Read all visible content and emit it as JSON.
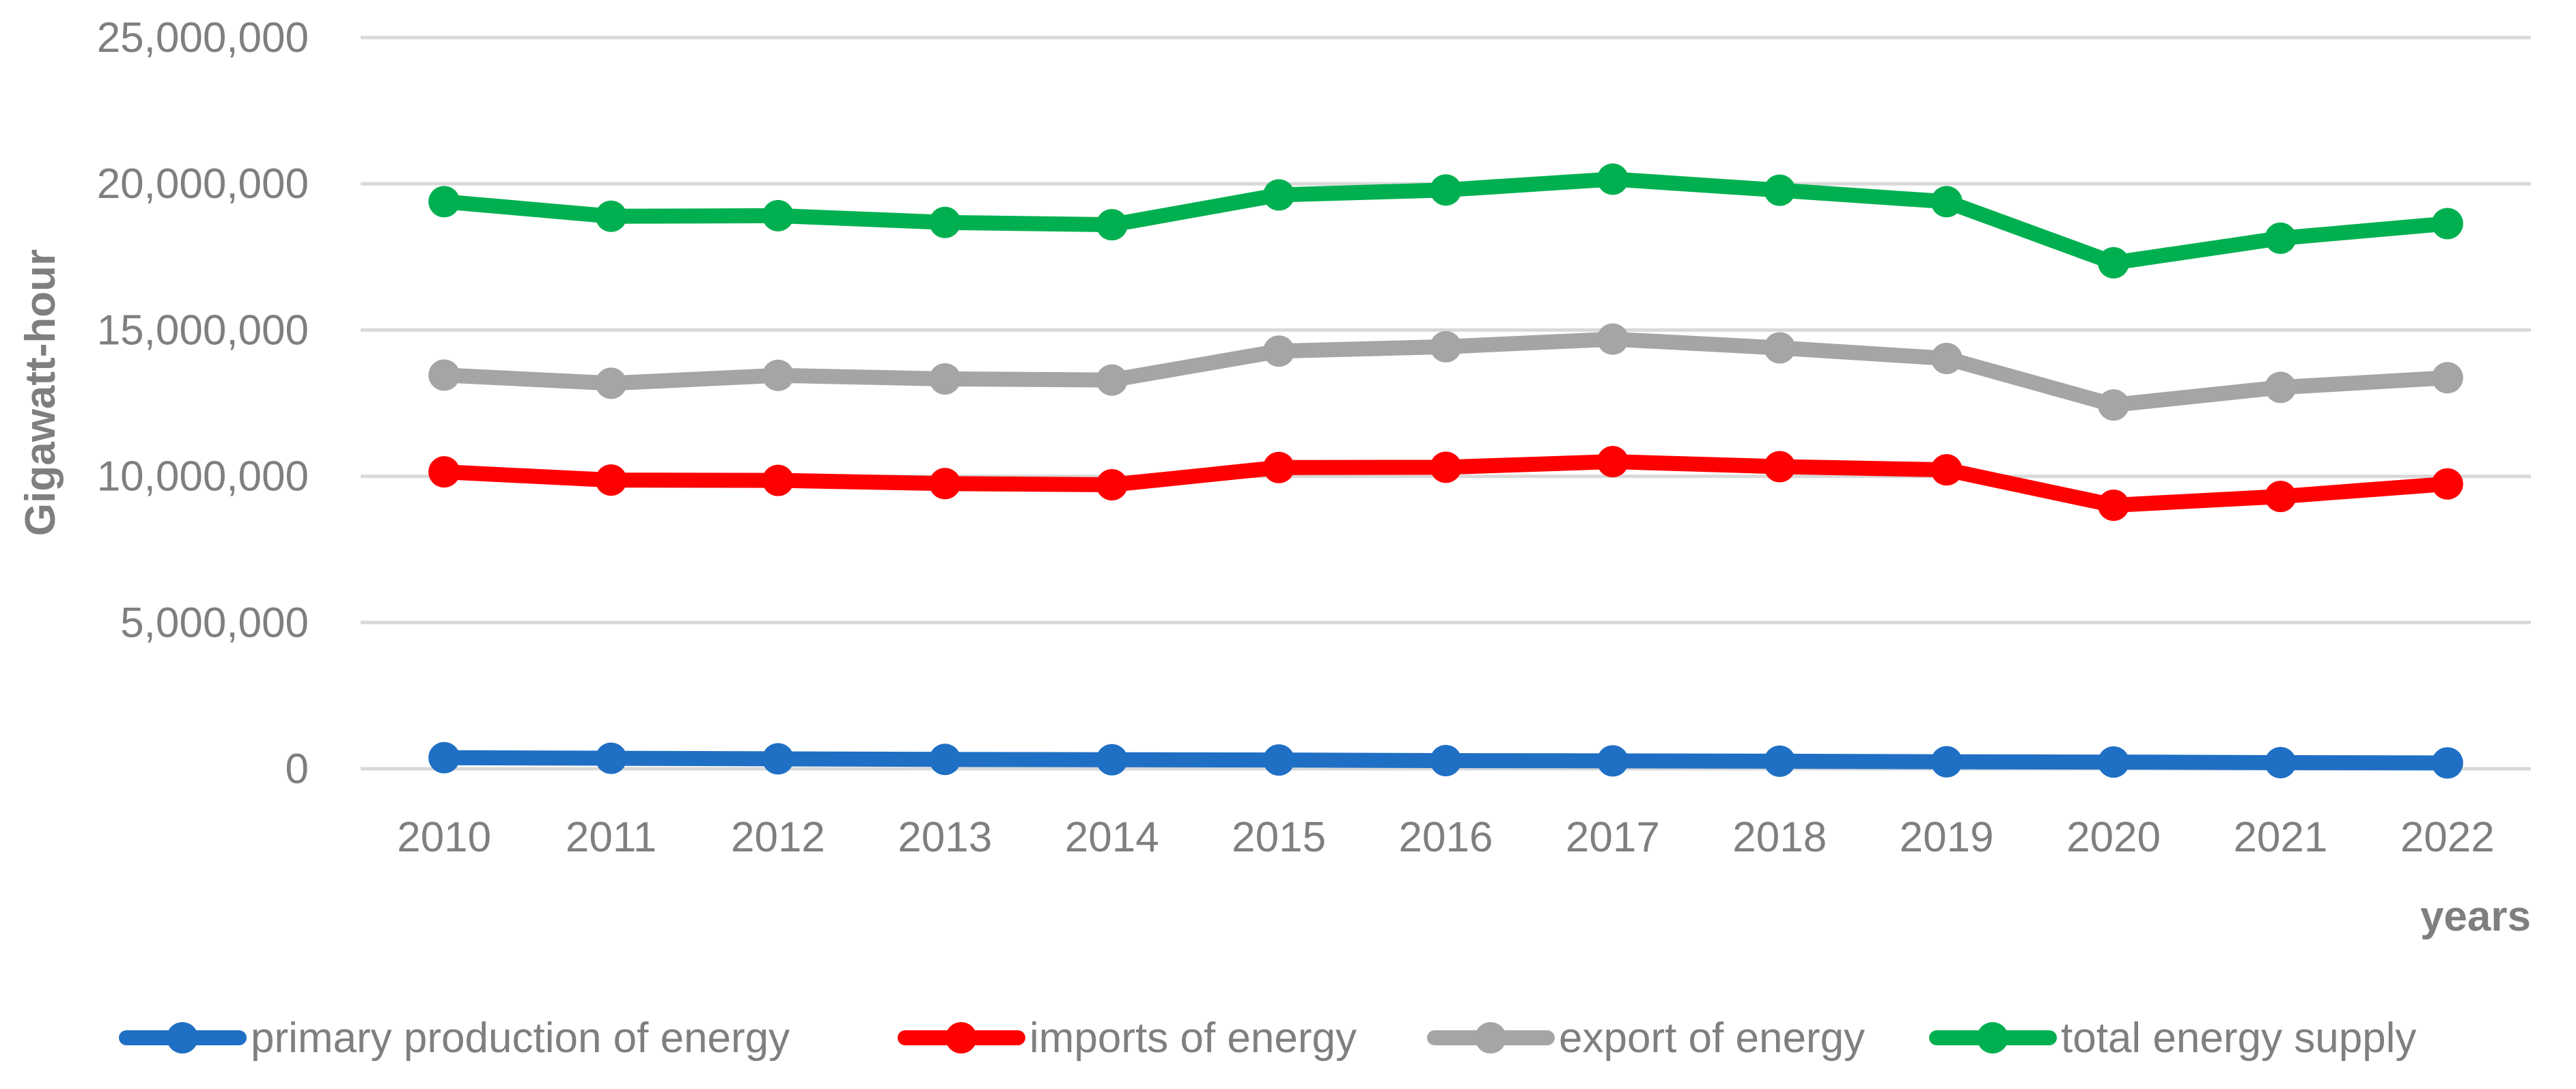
{
  "chart_data": {
    "type": "line",
    "title": "",
    "xlabel": "years",
    "ylabel": "Gigawatt-hour",
    "categories": [
      "2010",
      "2011",
      "2012",
      "2013",
      "2014",
      "2015",
      "2016",
      "2017",
      "2018",
      "2019",
      "2020",
      "2021",
      "2022"
    ],
    "ylim": [
      0,
      25000000
    ],
    "y_ticks": [
      0,
      5000000,
      10000000,
      15000000,
      20000000,
      25000000
    ],
    "y_tick_labels": [
      "0",
      "5,000,000",
      "10,000,000",
      "15,000,000",
      "20,000,000",
      "25,000,000"
    ],
    "grid": true,
    "legend_position": "bottom",
    "series": [
      {
        "name": "primary production of energy",
        "color": "#1f6fc5",
        "values": [
          380000,
          360000,
          340000,
          320000,
          310000,
          300000,
          280000,
          270000,
          260000,
          240000,
          230000,
          210000,
          200000
        ]
      },
      {
        "name": "imports of energy",
        "color": "#ff0000",
        "values": [
          10150000,
          9870000,
          9860000,
          9750000,
          9710000,
          10300000,
          10310000,
          10500000,
          10330000,
          10220000,
          9010000,
          9310000,
          9740000
        ]
      },
      {
        "name": "export of energy",
        "color": "#a5a5a5",
        "values": [
          13460000,
          13180000,
          13450000,
          13330000,
          13290000,
          14280000,
          14430000,
          14690000,
          14390000,
          14030000,
          12440000,
          13040000,
          13370000
        ]
      },
      {
        "name": "total energy supply",
        "color": "#00b050",
        "values": [
          19390000,
          18890000,
          18910000,
          18680000,
          18600000,
          19620000,
          19790000,
          20160000,
          19780000,
          19390000,
          17300000,
          18140000,
          18640000
        ]
      }
    ]
  }
}
